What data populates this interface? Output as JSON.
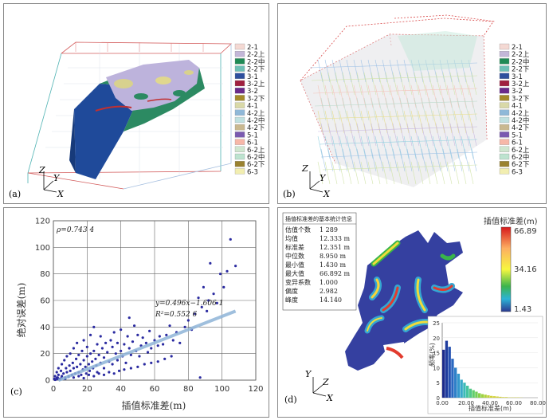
{
  "legend_labels": [
    "2-1",
    "2-2上",
    "2-2中",
    "2-2下",
    "3-1",
    "3-2上",
    "3-2",
    "3-2下",
    "4-1",
    "4-2上",
    "4-2中",
    "4-2下",
    "5-1",
    "6-1",
    "6-2上",
    "6-2中",
    "6-2下",
    "6-3"
  ],
  "legend_colors": [
    "#f4d9d3",
    "#c3b7d8",
    "#1f8a55",
    "#6ec0b6",
    "#2e4f9e",
    "#a02040",
    "#6a2a8a",
    "#a48a2a",
    "#d9d9a8",
    "#8fb8d8",
    "#bfe0e0",
    "#c9b890",
    "#7a5ab0",
    "#f7b7a8",
    "#cfe6cf",
    "#bde3cf",
    "#9a8230",
    "#f2eeb0"
  ],
  "legend_b_labels": [
    "2-1",
    "2-2上",
    "2-2中",
    "2-2下",
    "3-1",
    "3-2上",
    "3-2",
    "3-2下",
    "4-1",
    "4-2上",
    "4-2中",
    "4-2下",
    "5-1",
    "6-1",
    "6-2上",
    "6-2中",
    "6-2下",
    "6-3"
  ],
  "panels": {
    "a": {
      "label": "(a)",
      "axis_z": "Z",
      "axis_y": "Y",
      "axis_x": "X"
    },
    "b": {
      "label": "(b)",
      "axis_z": "Z",
      "axis_y": "Y",
      "axis_x": "X"
    },
    "c": {
      "label": "(c)"
    },
    "d": {
      "label": "(d)",
      "axis_z": "Z",
      "axis_y": "Y",
      "axis_x": "X"
    }
  },
  "chart_data": [
    {
      "type": "scatter",
      "panel": "c",
      "xlabel": "插值标准差(m)",
      "ylabel": "绝对误差(m)",
      "xlim": [
        0,
        120
      ],
      "ylim": [
        0,
        120
      ],
      "xticks": [
        0,
        20,
        40,
        60,
        80,
        100,
        120
      ],
      "yticks": [
        0,
        20,
        40,
        60,
        80,
        100,
        120
      ],
      "grid": true,
      "annotations": {
        "rho": "ρ=0.743 4",
        "equation": "y=0.496x−1.606 1",
        "r2": "R²=0.552 6"
      },
      "fit_line": {
        "slope": 0.496,
        "intercept": -1.6061,
        "x_range": [
          3,
          108
        ]
      },
      "points": [
        [
          0.5,
          1
        ],
        [
          1,
          3
        ],
        [
          1.5,
          0.5
        ],
        [
          2,
          6
        ],
        [
          2.5,
          2
        ],
        [
          3,
          9
        ],
        [
          3,
          4
        ],
        [
          4,
          1
        ],
        [
          4.5,
          7
        ],
        [
          5,
          12
        ],
        [
          5,
          3
        ],
        [
          6,
          5
        ],
        [
          6.5,
          15
        ],
        [
          7,
          2
        ],
        [
          7.5,
          9
        ],
        [
          8,
          6
        ],
        [
          8,
          18
        ],
        [
          9,
          3
        ],
        [
          9.5,
          11
        ],
        [
          10,
          7
        ],
        [
          10,
          20
        ],
        [
          11,
          4
        ],
        [
          11.5,
          13
        ],
        [
          12,
          9
        ],
        [
          12,
          24
        ],
        [
          13,
          5
        ],
        [
          13.5,
          16
        ],
        [
          14,
          10
        ],
        [
          14,
          28
        ],
        [
          15,
          6
        ],
        [
          15,
          19
        ],
        [
          16,
          12
        ],
        [
          16.5,
          4
        ],
        [
          17,
          22
        ],
        [
          17.5,
          8
        ],
        [
          18,
          15
        ],
        [
          18,
          30
        ],
        [
          19,
          10
        ],
        [
          19.5,
          5
        ],
        [
          20,
          18
        ],
        [
          20,
          25
        ],
        [
          21,
          12
        ],
        [
          21.5,
          7
        ],
        [
          22,
          20
        ],
        [
          22,
          34
        ],
        [
          23,
          14
        ],
        [
          23.5,
          9
        ],
        [
          24,
          22
        ],
        [
          24,
          40
        ],
        [
          25,
          16
        ],
        [
          25.5,
          11
        ],
        [
          26,
          27
        ],
        [
          26,
          6
        ],
        [
          27,
          19
        ],
        [
          28,
          13
        ],
        [
          28,
          33
        ],
        [
          29,
          24
        ],
        [
          30,
          17
        ],
        [
          30,
          9
        ],
        [
          31,
          28
        ],
        [
          32,
          21
        ],
        [
          33,
          14
        ],
        [
          34,
          30
        ],
        [
          35,
          25
        ],
        [
          35,
          12
        ],
        [
          36,
          36
        ],
        [
          37,
          20
        ],
        [
          38,
          15
        ],
        [
          38,
          28
        ],
        [
          40,
          22
        ],
        [
          40,
          38
        ],
        [
          41,
          18
        ],
        [
          42,
          27
        ],
        [
          43,
          13
        ],
        [
          44,
          33
        ],
        [
          45,
          24
        ],
        [
          45,
          47
        ],
        [
          46,
          19
        ],
        [
          47,
          29
        ],
        [
          48,
          41
        ],
        [
          49,
          22
        ],
        [
          50,
          34
        ],
        [
          51,
          18
        ],
        [
          52,
          26
        ],
        [
          53,
          32
        ],
        [
          55,
          28
        ],
        [
          56,
          21
        ],
        [
          57,
          37
        ],
        [
          58,
          24
        ],
        [
          60,
          30
        ],
        [
          62,
          26
        ],
        [
          63,
          33
        ],
        [
          65,
          27
        ],
        [
          67,
          34
        ],
        [
          69,
          41
        ],
        [
          71,
          30
        ],
        [
          73,
          36
        ],
        [
          75,
          28
        ],
        [
          78,
          40
        ],
        [
          80,
          45
        ],
        [
          82,
          38
        ],
        [
          84,
          50
        ],
        [
          86,
          62
        ],
        [
          87,
          2
        ],
        [
          88,
          55
        ],
        [
          89,
          70
        ],
        [
          91,
          52
        ],
        [
          92,
          60
        ],
        [
          93,
          88
        ],
        [
          95,
          65
        ],
        [
          97,
          58
        ],
        [
          99,
          80
        ],
        [
          101,
          70
        ],
        [
          103,
          82
        ],
        [
          105,
          106
        ],
        [
          108,
          86
        ],
        [
          1,
          0.3
        ],
        [
          2,
          1.5
        ],
        [
          3,
          0.8
        ],
        [
          5,
          2
        ],
        [
          7,
          1
        ],
        [
          9,
          2.5
        ],
        [
          12,
          2
        ],
        [
          15,
          3
        ],
        [
          18,
          1.5
        ],
        [
          21,
          4
        ],
        [
          24,
          3
        ],
        [
          27,
          5
        ],
        [
          30,
          4
        ],
        [
          33,
          6
        ],
        [
          36,
          5
        ],
        [
          39,
          7
        ],
        [
          42,
          8
        ],
        [
          46,
          9
        ],
        [
          50,
          10
        ],
        [
          54,
          12
        ],
        [
          58,
          13
        ],
        [
          62,
          14
        ],
        [
          66,
          16
        ],
        [
          70,
          18
        ]
      ]
    },
    {
      "type": "bar",
      "panel": "d-inset",
      "xlabel": "插值标准差(m)",
      "ylabel": "频率(%)",
      "xlim": [
        0,
        80
      ],
      "ylim": [
        0,
        25
      ],
      "xticks": [
        "0.00",
        "20.00",
        "40.00",
        "60.00",
        "80.00"
      ],
      "yticks": [
        0,
        5,
        10,
        15,
        20,
        25
      ],
      "bin_width": 2.5,
      "values": [
        16,
        19,
        17,
        13,
        10,
        8,
        6,
        5,
        4,
        3,
        2.5,
        2,
        1.5,
        1.2,
        1,
        0.8,
        0.6,
        0.5,
        0.4,
        0.3,
        0.2,
        0.2,
        0.1,
        0.1,
        0.1,
        0.1,
        0.05
      ]
    }
  ],
  "stats_table": {
    "title": "插值标准差的基本统计信息",
    "rows": [
      {
        "label": "估值个数",
        "value": "1 289"
      },
      {
        "label": "均值",
        "value": "12.333 m"
      },
      {
        "label": "标准差",
        "value": "12.351 m"
      },
      {
        "label": "中位数",
        "value": "8.950 m"
      },
      {
        "label": "最小值",
        "value": "1.430 m"
      },
      {
        "label": "最大值",
        "value": "66.892 m"
      },
      {
        "label": "变异系数",
        "value": "1.000"
      },
      {
        "label": "偏度",
        "value": "2.982"
      },
      {
        "label": "峰度",
        "value": "14.140"
      }
    ]
  },
  "colorbar": {
    "title": "插值标准差(m)",
    "max": "66.89",
    "mid": "34.16",
    "min": "1.43"
  }
}
